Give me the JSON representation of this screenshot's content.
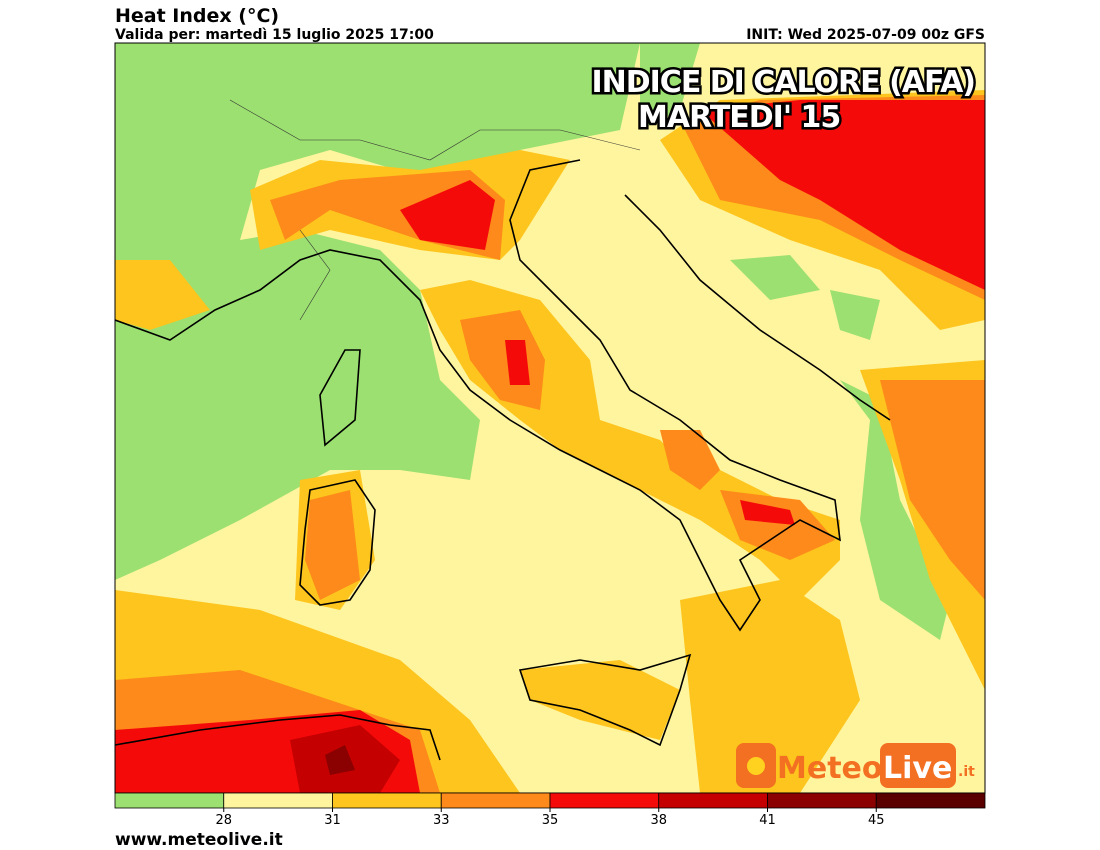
{
  "header": {
    "title": "Heat Index (°C)",
    "valid": "Valida per: martedì 15 luglio 2025 17:00",
    "init": "INIT: Wed 2025-07-09 00z GFS"
  },
  "overlay": {
    "line1": "INDICE DI CALORE (AFA)",
    "line2": "MARTEDI' 15"
  },
  "legend": {
    "colors": [
      "#9be070",
      "#fff59f",
      "#fdc51d",
      "#fd8a1a",
      "#f50a0a",
      "#c50000",
      "#8b0000",
      "#5a0000"
    ],
    "ticks": [
      28,
      31,
      33,
      35,
      38,
      41,
      45
    ]
  },
  "logo": {
    "meteo": "Meteo",
    "live": "Live",
    "tld": ".it"
  },
  "footer": "www.meteolive.it"
}
